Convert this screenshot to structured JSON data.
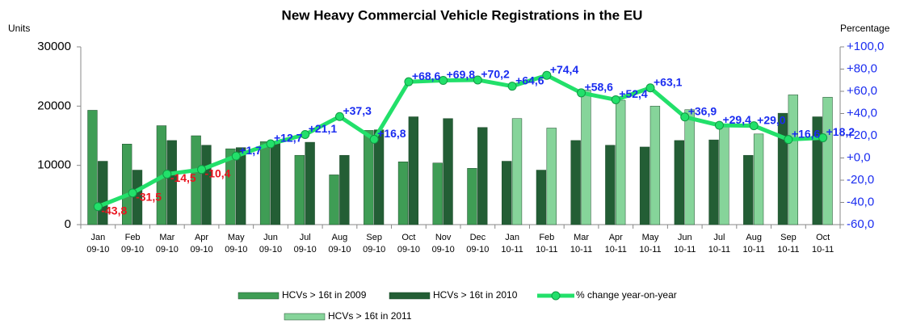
{
  "chart_data": {
    "type": "bar",
    "title": "New Heavy Commercial Vehicle Registrations in the EU",
    "y_label": "Units",
    "y2_label": "Percentage",
    "categories": [
      [
        "Jan",
        "09-10"
      ],
      [
        "Feb",
        "09-10"
      ],
      [
        "Mar",
        "09-10"
      ],
      [
        "Apr",
        "09-10"
      ],
      [
        "May",
        "09-10"
      ],
      [
        "Jun",
        "09-10"
      ],
      [
        "Jul",
        "09-10"
      ],
      [
        "Aug",
        "09-10"
      ],
      [
        "Sep",
        "09-10"
      ],
      [
        "Oct",
        "09-10"
      ],
      [
        "Nov",
        "09-10"
      ],
      [
        "Dec",
        "09-10"
      ],
      [
        "Jan",
        "10-11"
      ],
      [
        "Feb",
        "10-11"
      ],
      [
        "Mar",
        "10-11"
      ],
      [
        "Apr",
        "10-11"
      ],
      [
        "May",
        "10-11"
      ],
      [
        "Jun",
        "10-11"
      ],
      [
        "Jul",
        "10-11"
      ],
      [
        "Aug",
        "10-11"
      ],
      [
        "Sep",
        "10-11"
      ],
      [
        "Oct",
        "10-11"
      ]
    ],
    "series": [
      {
        "name": "HCVs > 16t in 2009",
        "type": "bar",
        "color": "#3f9d55",
        "values": [
          19300,
          13600,
          16700,
          15000,
          12800,
          14000,
          11700,
          8400,
          15900,
          10600,
          10400,
          9500,
          null,
          null,
          null,
          null,
          null,
          null,
          null,
          null,
          null,
          null
        ]
      },
      {
        "name": "HCVs > 16t in 2010",
        "type": "bar",
        "color": "#235e35",
        "values": [
          10700,
          9200,
          14200,
          13400,
          13000,
          13800,
          13900,
          11700,
          16000,
          18200,
          17900,
          16400,
          10700,
          9200,
          14200,
          13400,
          13100,
          14200,
          14300,
          11700,
          18800,
          18200
        ]
      },
      {
        "name": "% change year-on-year",
        "type": "line",
        "axis": "y2",
        "color": "#22e06a",
        "values": [
          -43.8,
          -31.5,
          -14.5,
          -10.4,
          1.7,
          12.7,
          21.1,
          37.3,
          16.8,
          68.6,
          69.8,
          70.2,
          64.6,
          74.4,
          58.6,
          52.4,
          63.1,
          36.9,
          29.4,
          29.0,
          16.6,
          18.2
        ],
        "value_labels": [
          "-43,8",
          "-31,5",
          "-14,5",
          "-10,4",
          "+1,7",
          "+12,7",
          "+21,1",
          "+37,3",
          "+16,8",
          "+68,6",
          "+69,8",
          "+70,2",
          "+64,6",
          "+74,4",
          "+58,6",
          "+52,4",
          "+63,1",
          "+36,9",
          "+29,4",
          "+29,0",
          "+16,6",
          "+18,2"
        ],
        "label_colors": {
          "negative": "#e8141e",
          "positive": "#1a2cf0"
        }
      },
      {
        "name": "HCVs > 16t in 2011",
        "type": "bar",
        "color": "#86d49a",
        "values": [
          null,
          null,
          null,
          null,
          null,
          null,
          null,
          null,
          null,
          null,
          null,
          null,
          17900,
          16300,
          22700,
          21000,
          20000,
          19400,
          16800,
          15300,
          21900,
          21500
        ]
      }
    ],
    "ylim": [
      0,
      30000
    ],
    "yticks": [
      0,
      10000,
      20000,
      30000
    ],
    "y2lim": [
      -60,
      100
    ],
    "y2ticks": [
      {
        "value": -60,
        "label": "-60,0"
      },
      {
        "value": -40,
        "label": "-40,0"
      },
      {
        "value": -20,
        "label": "-20,0"
      },
      {
        "value": 0,
        "label": "+0,0"
      },
      {
        "value": 20,
        "label": "+20,0"
      },
      {
        "value": 40,
        "label": "+40,0"
      },
      {
        "value": 60,
        "label": "+60,0"
      },
      {
        "value": 80,
        "label": "+80,0"
      },
      {
        "value": 100,
        "label": "+100,0"
      }
    ],
    "grid": false
  }
}
